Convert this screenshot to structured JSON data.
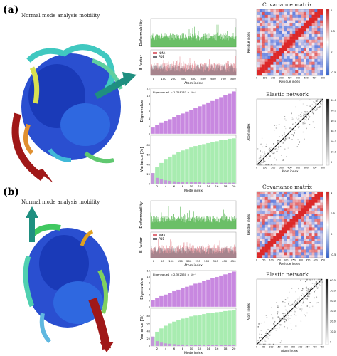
{
  "panels": [
    {
      "label": "(a)",
      "molecule_title": "Normal mode analysis mobility",
      "deformability": {
        "ylabel": "Deformability"
      },
      "bfactor": {
        "ylabel": "B-factor",
        "legend": [
          "NMA",
          "PDB"
        ],
        "xlabel": "Atom index",
        "xticks": [
          "0",
          "100",
          "200",
          "300",
          "400",
          "500",
          "600",
          "700",
          "800"
        ]
      },
      "eigen": {
        "ylabel": "Eigenvalue",
        "annotation": "Eigenvalue1 = 1.728131 × 10⁻⁴",
        "yticks": [
          "0",
          "2",
          "4",
          "6",
          "8",
          "10",
          "12"
        ]
      },
      "variance": {
        "ylabel": "Variance [%]",
        "xlabel": "Mode index",
        "xticks": [
          "2",
          "4",
          "6",
          "8",
          "10",
          "12",
          "14",
          "16",
          "18",
          "20"
        ],
        "yticks": [
          "0",
          "20",
          "40",
          "60",
          "80"
        ]
      },
      "covariance": {
        "title": "Covariance matrix",
        "xlabel": "Residue index",
        "ylabel": "Residue index",
        "ticks": [
          "0",
          "100",
          "200",
          "300",
          "400",
          "500",
          "600",
          "700",
          "800"
        ],
        "scale": [
          "1",
          "0.5",
          "0",
          "-0.5"
        ]
      },
      "elastic": {
        "title": "Elastic network",
        "xlabel": "Atom index",
        "ylabel": "Atom index",
        "ticks": [
          "0",
          "100",
          "200",
          "300",
          "400",
          "500",
          "600",
          "700",
          "800"
        ],
        "scale": [
          "60.0",
          "50.0",
          "40.0",
          "30.0",
          "20.0",
          "10.0",
          "0"
        ]
      }
    },
    {
      "label": "(b)",
      "molecule_title": "Normal mode analysis mobility",
      "deformability": {
        "ylabel": "Deformability"
      },
      "bfactor": {
        "ylabel": "B-factor",
        "legend": [
          "NMA",
          "PDB"
        ],
        "xlabel": "Atom index",
        "xticks": [
          "0",
          "50",
          "100",
          "150",
          "200",
          "250",
          "300",
          "350",
          "400",
          "450"
        ]
      },
      "eigen": {
        "ylabel": "Eigenvalue",
        "annotation": "Eigenvalue1 = 2.322560 × 10⁻⁴",
        "yticks": [
          "0",
          "2",
          "4",
          "6",
          "8",
          "10",
          "12"
        ]
      },
      "variance": {
        "ylabel": "Variance [%]",
        "xlabel": "Mode index",
        "xticks": [
          "2",
          "4",
          "6",
          "8",
          "10",
          "12",
          "14",
          "16",
          "18",
          "20"
        ],
        "yticks": [
          "0",
          "20",
          "40",
          "60",
          "80"
        ]
      },
      "covariance": {
        "title": "Covariance matrix",
        "xlabel": "Residue index",
        "ylabel": "Residue index",
        "ticks": [
          "0",
          "50",
          "100",
          "150",
          "200",
          "250",
          "300",
          "350",
          "400",
          "450"
        ],
        "scale": [
          "1",
          "0.5",
          "0",
          "-0.5"
        ]
      },
      "elastic": {
        "title": "Elastic network",
        "xlabel": "Atom index",
        "ylabel": "Atom index",
        "ticks": [
          "0",
          "50",
          "100",
          "150",
          "200",
          "250",
          "300",
          "350",
          "400",
          "450"
        ],
        "scale": [
          "60.0",
          "50.0",
          "40.0",
          "30.0",
          "20.0",
          "10.0",
          "0"
        ]
      }
    }
  ],
  "chart_data": [
    {
      "type": "bar",
      "panel": "a",
      "title": "",
      "xlabel": "Mode index",
      "ylabel": "Eigenvalue",
      "categories": [
        1,
        2,
        3,
        4,
        5,
        6,
        7,
        8,
        9,
        10,
        11,
        12,
        13,
        14,
        15,
        16,
        17,
        18,
        19,
        20
      ],
      "values": [
        1.7,
        2.3,
        2.9,
        3.4,
        3.9,
        4.4,
        4.9,
        5.4,
        5.9,
        6.3,
        6.8,
        7.3,
        7.8,
        8.3,
        8.7,
        9.2,
        9.7,
        10.2,
        10.6,
        11.2
      ],
      "ylim": [
        0,
        12
      ]
    },
    {
      "type": "bar",
      "panel": "a",
      "title": "",
      "xlabel": "Mode index",
      "ylabel": "Variance [%]",
      "categories": [
        1,
        2,
        3,
        4,
        5,
        6,
        7,
        8,
        9,
        10,
        11,
        12,
        13,
        14,
        15,
        16,
        17,
        18,
        19,
        20
      ],
      "series": [
        {
          "name": "individual",
          "values": [
            22,
            12,
            9,
            7,
            6,
            5,
            4,
            4,
            3,
            3,
            3,
            3,
            2,
            2,
            2,
            2,
            2,
            2,
            2,
            2
          ]
        },
        {
          "name": "cumulative",
          "values": [
            22,
            34,
            43,
            50,
            56,
            61,
            65,
            69,
            72,
            75,
            78,
            80,
            82,
            84,
            86,
            88,
            90,
            91,
            93,
            94
          ]
        }
      ],
      "ylim": [
        0,
        100
      ]
    },
    {
      "type": "bar",
      "panel": "b",
      "title": "",
      "xlabel": "Mode index",
      "ylabel": "Eigenvalue",
      "categories": [
        1,
        2,
        3,
        4,
        5,
        6,
        7,
        8,
        9,
        10,
        11,
        12,
        13,
        14,
        15,
        16,
        17,
        18,
        19,
        20
      ],
      "values": [
        2.3,
        3.0,
        3.6,
        4.1,
        4.7,
        5.2,
        5.7,
        6.2,
        6.7,
        7.2,
        7.7,
        8.1,
        8.6,
        9.0,
        9.5,
        9.9,
        10.4,
        10.8,
        11.3,
        11.7
      ],
      "ylim": [
        0,
        12
      ]
    },
    {
      "type": "bar",
      "panel": "b",
      "title": "",
      "xlabel": "Mode index",
      "ylabel": "Variance [%]",
      "categories": [
        1,
        2,
        3,
        4,
        5,
        6,
        7,
        8,
        9,
        10,
        11,
        12,
        13,
        14,
        15,
        16,
        17,
        18,
        19,
        20
      ],
      "series": [
        {
          "name": "individual",
          "values": [
            25,
            13,
            9,
            7,
            6,
            5,
            4,
            4,
            3,
            3,
            3,
            2,
            2,
            2,
            2,
            2,
            2,
            2,
            2,
            2
          ]
        },
        {
          "name": "cumulative",
          "values": [
            25,
            38,
            47,
            54,
            60,
            65,
            69,
            73,
            76,
            79,
            81,
            83,
            85,
            87,
            88,
            90,
            91,
            93,
            94,
            95
          ]
        }
      ],
      "ylim": [
        0,
        100
      ]
    }
  ],
  "colors": {
    "green": "#3aaa35",
    "lightgreen": "#a8ecb0",
    "purple": "#c888e0",
    "nma": "#e0707a",
    "pdb": "#707078",
    "protein_blue": "#2a4fd0",
    "arrow_red": "#a01818",
    "arrow_teal": "#1f8f80"
  },
  "icons": [
    "protein-ribbon",
    "mobility-arrow"
  ]
}
